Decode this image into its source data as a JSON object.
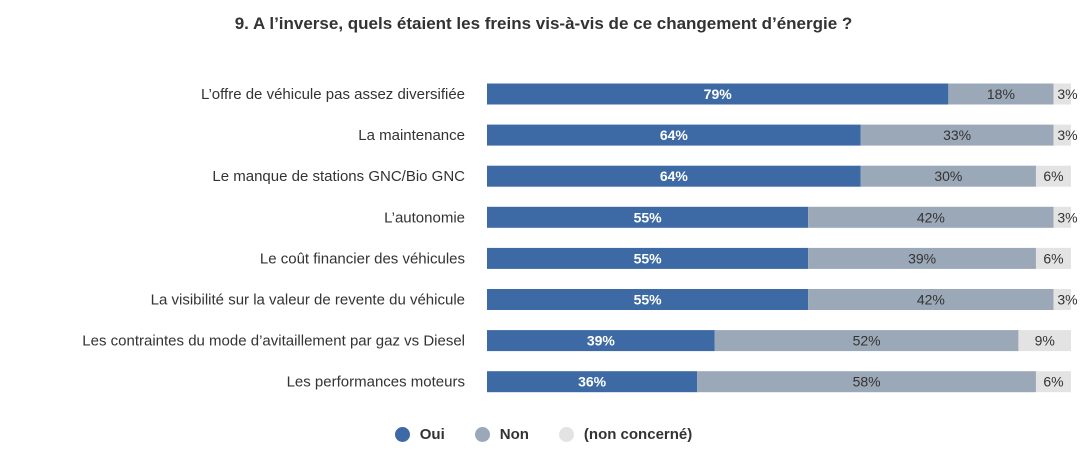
{
  "chart_data": {
    "type": "bar",
    "orientation": "horizontal",
    "stacked": true,
    "title": "9. A l’inverse, quels étaient les freins vis-à-vis de ce changement d’énergie ?",
    "categories": [
      "L’offre de véhicule pas assez diversifiée",
      "La maintenance",
      "Le manque de stations GNC/Bio GNC",
      "L’autonomie",
      "Le coût financier des véhicules",
      "La visibilité sur la valeur de revente du véhicule",
      "Les contraintes du mode d’avitaillement par gaz vs Diesel",
      "Les performances moteurs"
    ],
    "series": [
      {
        "name": "Oui",
        "values": [
          79,
          64,
          64,
          55,
          55,
          55,
          39,
          36
        ],
        "labels": [
          "79%",
          "64%",
          "64%",
          "55%",
          "55%",
          "55%",
          "39%",
          "36%"
        ],
        "color": "#3d6aa4",
        "label_color": "#ffffff"
      },
      {
        "name": "Non",
        "values": [
          18,
          33,
          30,
          42,
          39,
          42,
          52,
          58
        ],
        "labels": [
          "18%",
          "33%",
          "30%",
          "42%",
          "39%",
          "42%",
          "52%",
          "58%"
        ],
        "color": "#9ba8b8",
        "label_color": "#333333"
      },
      {
        "name": "(non concerné)",
        "values": [
          3,
          3,
          6,
          3,
          6,
          3,
          9,
          6
        ],
        "labels": [
          "3%",
          "3%",
          "6%",
          "3%",
          "6%",
          "3%",
          "9%",
          "6%"
        ],
        "color": "#e3e3e3",
        "label_color": "#333333"
      }
    ],
    "xlim": [
      0,
      100
    ],
    "legend_position": "bottom",
    "grid": false
  }
}
